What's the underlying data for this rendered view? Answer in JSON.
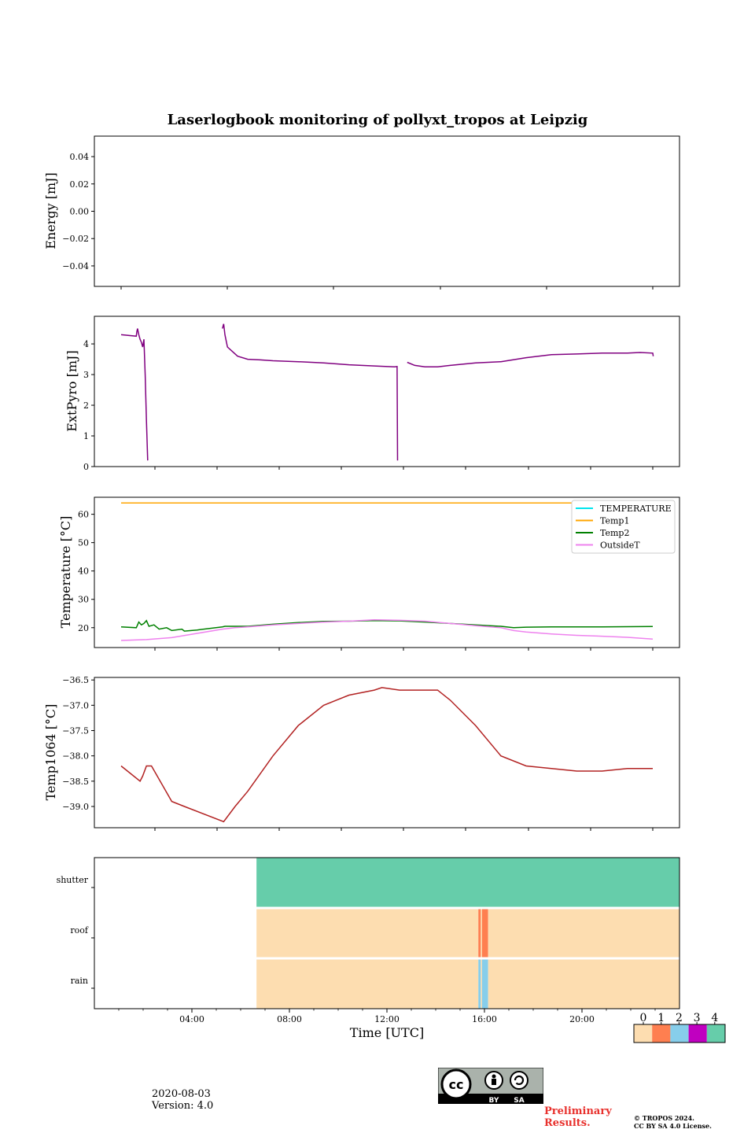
{
  "title": "Laserlogbook monitoring of pollyxt_tropos at Leipzig",
  "footer": {
    "date": "2020-08-03",
    "version": "Version: 4.0",
    "preliminary_line1": "Preliminary",
    "preliminary_line2": "Results.",
    "copyright_line1": "© TROPOS 2024.",
    "copyright_line2": "CC BY SA 4.0 License.",
    "license_badge_labels": [
      "BY",
      "SA"
    ]
  },
  "chart_data": [
    {
      "id": "energy",
      "type": "line",
      "ylabel": "Energy [mJ]",
      "ylim": [
        -0.055,
        0.055
      ],
      "yticks": [
        0.04,
        0.02,
        0.0,
        -0.02,
        -0.04
      ],
      "ytick_labels": [
        "0.04",
        "0.02",
        "0.00",
        "−0.02",
        "−0.04"
      ],
      "series": []
    },
    {
      "id": "extpyro",
      "type": "line",
      "ylabel": "ExtPyro [mJ]",
      "ylim": [
        0,
        4.9
      ],
      "yticks": [
        0,
        1,
        2,
        3,
        4
      ],
      "ytick_labels": [
        "0",
        "1",
        "2",
        "3",
        "4"
      ],
      "series": [
        {
          "name": "ExtPyro",
          "color": "#800080",
          "segments": [
            [
              [
                1.0,
                4.3
              ],
              [
                1.6,
                4.25
              ],
              [
                1.62,
                4.4
              ],
              [
                1.65,
                4.5
              ],
              [
                1.7,
                4.3
              ],
              [
                1.75,
                4.15
              ],
              [
                1.8,
                4.05
              ],
              [
                1.85,
                3.9
              ],
              [
                1.9,
                4.15
              ],
              [
                1.95,
                3.0
              ],
              [
                2.0,
                1.5
              ],
              [
                2.05,
                0.2
              ]
            ],
            [
              [
                5.0,
                4.5
              ],
              [
                5.05,
                4.65
              ],
              [
                5.1,
                4.3
              ],
              [
                5.2,
                3.9
              ],
              [
                5.4,
                3.75
              ],
              [
                5.6,
                3.6
              ],
              [
                6.0,
                3.5
              ],
              [
                6.5,
                3.48
              ],
              [
                7.0,
                3.45
              ],
              [
                8.0,
                3.42
              ],
              [
                9.0,
                3.38
              ],
              [
                10.0,
                3.32
              ],
              [
                11.0,
                3.28
              ],
              [
                11.8,
                3.25
              ],
              [
                11.9,
                3.26
              ],
              [
                11.92,
                0.2
              ]
            ],
            [
              [
                12.3,
                3.4
              ],
              [
                12.6,
                3.3
              ],
              [
                13.0,
                3.25
              ],
              [
                13.5,
                3.25
              ],
              [
                14.0,
                3.3
              ],
              [
                15.0,
                3.38
              ],
              [
                16.0,
                3.42
              ],
              [
                17.0,
                3.55
              ],
              [
                18.0,
                3.65
              ],
              [
                19.0,
                3.67
              ],
              [
                20.0,
                3.7
              ],
              [
                21.0,
                3.7
              ],
              [
                21.5,
                3.72
              ],
              [
                22.0,
                3.7
              ],
              [
                22.02,
                3.6
              ]
            ]
          ]
        }
      ]
    },
    {
      "id": "temperature",
      "type": "line",
      "ylabel": "Temperature [°C]",
      "ylim": [
        13,
        66
      ],
      "yticks": [
        20,
        30,
        40,
        50,
        60
      ],
      "ytick_labels": [
        "20",
        "30",
        "40",
        "50",
        "60"
      ],
      "legend": [
        "TEMPERATURE",
        "Temp1",
        "Temp2",
        "OutsideT"
      ],
      "legend_position": "top-right",
      "series": [
        {
          "name": "TEMPERATURE",
          "color": "#00e5ee",
          "points": []
        },
        {
          "name": "Temp1",
          "color": "#ffa500",
          "points": [
            [
              1.0,
              64
            ],
            [
              22.0,
              64
            ]
          ]
        },
        {
          "name": "Temp2",
          "color": "#008000",
          "points": [
            [
              1.0,
              20.3
            ],
            [
              1.6,
              20.0
            ],
            [
              1.7,
              22.0
            ],
            [
              1.8,
              21.0
            ],
            [
              1.9,
              21.5
            ],
            [
              2.0,
              22.5
            ],
            [
              2.1,
              20.5
            ],
            [
              2.3,
              21.0
            ],
            [
              2.5,
              19.5
            ],
            [
              2.8,
              20.0
            ],
            [
              3.0,
              19.0
            ],
            [
              3.4,
              19.5
            ],
            [
              3.5,
              18.8
            ],
            [
              4.0,
              19.2
            ],
            [
              5.0,
              20.3
            ],
            [
              5.1,
              20.5
            ],
            [
              6.0,
              20.5
            ],
            [
              7.0,
              21.2
            ],
            [
              8.0,
              21.8
            ],
            [
              9.0,
              22.2
            ],
            [
              10.0,
              22.3
            ],
            [
              11.0,
              22.5
            ],
            [
              12.0,
              22.4
            ],
            [
              13.0,
              22.0
            ],
            [
              14.0,
              21.5
            ],
            [
              15.0,
              21.0
            ],
            [
              16.0,
              20.5
            ],
            [
              16.5,
              20.0
            ],
            [
              17.0,
              20.2
            ],
            [
              18.0,
              20.3
            ],
            [
              20.0,
              20.3
            ],
            [
              22.0,
              20.4
            ]
          ]
        },
        {
          "name": "OutsideT",
          "color": "#ee82ee",
          "points": [
            [
              1.0,
              15.5
            ],
            [
              2.0,
              15.8
            ],
            [
              3.0,
              16.5
            ],
            [
              4.0,
              18.0
            ],
            [
              5.0,
              19.5
            ],
            [
              5.5,
              20.0
            ],
            [
              6.0,
              20.3
            ],
            [
              7.0,
              21.0
            ],
            [
              8.0,
              21.5
            ],
            [
              9.0,
              22.0
            ],
            [
              10.0,
              22.3
            ],
            [
              11.0,
              22.8
            ],
            [
              12.0,
              22.6
            ],
            [
              13.0,
              22.3
            ],
            [
              14.0,
              21.5
            ],
            [
              15.0,
              20.7
            ],
            [
              16.0,
              20.0
            ],
            [
              16.5,
              19.0
            ],
            [
              17.0,
              18.5
            ],
            [
              18.0,
              17.8
            ],
            [
              19.0,
              17.3
            ],
            [
              20.0,
              17.0
            ],
            [
              21.0,
              16.6
            ],
            [
              22.0,
              16.0
            ]
          ]
        }
      ]
    },
    {
      "id": "temp1064",
      "type": "line",
      "ylabel": "Temp1064 [°C]",
      "ylim": [
        -39.42,
        -36.45
      ],
      "yticks": [
        -36.5,
        -37.0,
        -37.5,
        -38.0,
        -38.5,
        -39.0
      ],
      "ytick_labels": [
        "−36.5",
        "−37.0",
        "−37.5",
        "−38.0",
        "−38.5",
        "−39.0"
      ],
      "series": [
        {
          "name": "Temp1064",
          "color": "#b22222",
          "points": [
            [
              1.0,
              -38.2
            ],
            [
              1.75,
              -38.5
            ],
            [
              1.85,
              -38.4
            ],
            [
              2.0,
              -38.2
            ],
            [
              2.2,
              -38.2
            ],
            [
              3.0,
              -38.9
            ],
            [
              3.5,
              -39.0
            ],
            [
              5.05,
              -39.3
            ],
            [
              5.5,
              -39.0
            ],
            [
              6.0,
              -38.7
            ],
            [
              7.0,
              -38.0
            ],
            [
              8.0,
              -37.4
            ],
            [
              9.0,
              -37.0
            ],
            [
              10.0,
              -36.8
            ],
            [
              11.0,
              -36.7
            ],
            [
              11.3,
              -36.65
            ],
            [
              12.0,
              -36.7
            ],
            [
              13.5,
              -36.7
            ],
            [
              14.0,
              -36.9
            ],
            [
              15.0,
              -37.4
            ],
            [
              16.0,
              -38.0
            ],
            [
              17.0,
              -38.2
            ],
            [
              18.0,
              -38.25
            ],
            [
              19.0,
              -38.3
            ],
            [
              20.0,
              -38.3
            ],
            [
              21.0,
              -38.25
            ],
            [
              22.0,
              -38.25
            ]
          ]
        }
      ]
    },
    {
      "id": "status",
      "type": "heatmap",
      "xlabel": "Time [UTC]",
      "xticks": [
        4,
        8,
        12,
        16,
        20
      ],
      "xtick_labels": [
        "04:00",
        "08:00",
        "12:00",
        "16:00",
        "20:00"
      ],
      "xlim": [
        0,
        24
      ],
      "rows": [
        "shutter",
        "roof",
        "rain"
      ],
      "start_hour": 6.65,
      "blocks": [
        {
          "row": "shutter",
          "from": 6.65,
          "to": 24,
          "value": 4
        },
        {
          "row": "roof",
          "from": 6.65,
          "to": 15.75,
          "value": 0
        },
        {
          "row": "roof",
          "from": 15.75,
          "to": 15.85,
          "value": 1
        },
        {
          "row": "roof",
          "from": 15.85,
          "to": 15.9,
          "value": 0
        },
        {
          "row": "roof",
          "from": 15.9,
          "to": 16.15,
          "value": 1
        },
        {
          "row": "roof",
          "from": 16.15,
          "to": 24,
          "value": 0
        },
        {
          "row": "rain",
          "from": 6.65,
          "to": 15.75,
          "value": 0
        },
        {
          "row": "rain",
          "from": 15.75,
          "to": 15.85,
          "value": 2
        },
        {
          "row": "rain",
          "from": 15.85,
          "to": 15.9,
          "value": 0
        },
        {
          "row": "rain",
          "from": 15.9,
          "to": 16.15,
          "value": 2
        },
        {
          "row": "rain",
          "from": 16.15,
          "to": 24,
          "value": 0
        }
      ],
      "colorbar": {
        "labels": [
          "0",
          "1",
          "2",
          "3",
          "4"
        ],
        "colors": [
          "#fdddb0",
          "#fe7f50",
          "#87ceeb",
          "#c000c0",
          "#66cdaa"
        ]
      }
    }
  ]
}
